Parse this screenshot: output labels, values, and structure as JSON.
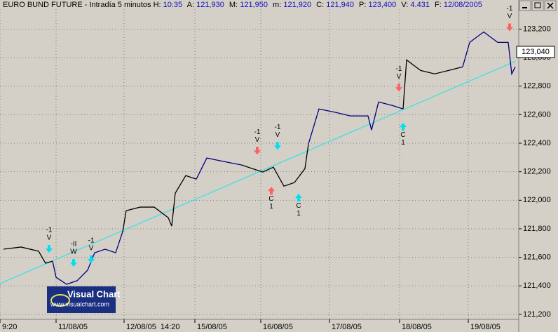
{
  "chart_data": {
    "type": "line",
    "title": "EURO BUND FUTURE - Intradía 5 minutos",
    "header_fields": [
      {
        "key": "H:",
        "value": "10:35"
      },
      {
        "key": "A:",
        "value": "121,930"
      },
      {
        "key": "M:",
        "value": "121,950"
      },
      {
        "key": "m:",
        "value": "121,920"
      },
      {
        "key": "C:",
        "value": "121,940"
      },
      {
        "key": "P:",
        "value": "123,400"
      },
      {
        "key": "V:",
        "value": "4.431"
      },
      {
        "key": "F:",
        "value": "12/08/2005"
      }
    ],
    "x": [
      5,
      30,
      55,
      65,
      75,
      80,
      95,
      110,
      125,
      135,
      150,
      165,
      175,
      180,
      200,
      220,
      240,
      245,
      250,
      265,
      280,
      295,
      320,
      345,
      360,
      375,
      390,
      405,
      420,
      435,
      440,
      455,
      480,
      500,
      525,
      530,
      540,
      560,
      575,
      580,
      600,
      620,
      640,
      660,
      670,
      690,
      710,
      725,
      730,
      735
    ],
    "series": [
      {
        "color": "#000000",
        "values": [
          121657,
          121672,
          121643,
          121559,
          121573,
          null,
          null,
          null,
          null,
          null,
          null,
          null,
          121780,
          121927,
          121952,
          121952,
          121878,
          121819,
          122050,
          122173,
          122148,
          null,
          null,
          122247,
          122222,
          122198,
          122232,
          122099,
          122124,
          122222,
          122394,
          null,
          null,
          null,
          null,
          null,
          null,
          null,
          122640,
          122984,
          122910,
          122886,
          122910,
          122935,
          null,
          null,
          null,
          null,
          null,
          null
        ]
      },
      {
        "color": "#000080",
        "values": [
          null,
          null,
          null,
          null,
          121573,
          121460,
          121411,
          121436,
          121510,
          121632,
          121657,
          121632,
          121780,
          null,
          null,
          null,
          null,
          null,
          null,
          null,
          122148,
          122296,
          122271,
          122247,
          null,
          null,
          null,
          null,
          null,
          null,
          122394,
          122640,
          122615,
          122591,
          122591,
          122492,
          122689,
          122664,
          122640,
          null,
          null,
          null,
          null,
          122935,
          123107,
          123180,
          123107,
          123107,
          122886,
          122935
        ]
      }
    ],
    "trendline": {
      "color": "#40e0e0",
      "x": [
        0,
        735
      ],
      "values": [
        121416,
        122974
      ]
    },
    "signals": [
      {
        "x": 70,
        "price": 121632,
        "direction": "down",
        "color": "#00e0f0",
        "texts": [
          "-1",
          "V"
        ]
      },
      {
        "x": 105,
        "price": 121534,
        "direction": "down",
        "color": "#00e0f0",
        "texts": [
          "-II",
          "W"
        ]
      },
      {
        "x": 130,
        "price": 121559,
        "direction": "down",
        "color": "#00e0f0",
        "texts": [
          "-1",
          "V"
        ]
      },
      {
        "x": 367,
        "price": 122320,
        "direction": "down",
        "color": "#ff6060",
        "texts": [
          "-1",
          "V"
        ]
      },
      {
        "x": 396,
        "price": 122354,
        "direction": "down",
        "color": "#00e0f0",
        "texts": [
          "-1",
          "V"
        ]
      },
      {
        "x": 387,
        "price": 122094,
        "direction": "up",
        "color": "#ff6060",
        "texts": [
          "C",
          "1"
        ]
      },
      {
        "x": 426,
        "price": 122045,
        "direction": "up",
        "color": "#00e0f0",
        "texts": [
          "C",
          "1"
        ]
      },
      {
        "x": 569,
        "price": 122763,
        "direction": "down",
        "color": "#ff6060",
        "texts": [
          "-1",
          "V"
        ]
      },
      {
        "x": 575,
        "price": 122542,
        "direction": "up",
        "color": "#00e0f0",
        "texts": [
          "C",
          "1"
        ]
      },
      {
        "x": 727,
        "price": 123185,
        "direction": "down",
        "color": "#ff6060",
        "texts": [
          "-1",
          "V"
        ]
      }
    ],
    "last_price": {
      "value": 123040,
      "label": "123,040"
    },
    "xlim": [
      0,
      740
    ],
    "xticks": [
      {
        "value": 0,
        "label": "9:20"
      },
      {
        "value": 80,
        "label": "11/08/05"
      },
      {
        "value": 177,
        "label": "12/08/05  14:20"
      },
      {
        "value": 278,
        "label": "15/08/05"
      },
      {
        "value": 372,
        "label": "16/08/05"
      },
      {
        "value": 470,
        "label": "17/08/05"
      },
      {
        "value": 570,
        "label": "18/08/05"
      },
      {
        "value": 668,
        "label": "19/08/05"
      }
    ],
    "ylim": [
      121165,
      123340
    ],
    "yticks": [
      {
        "value": 121200,
        "label": "121,200"
      },
      {
        "value": 121400,
        "label": "121,400"
      },
      {
        "value": 121600,
        "label": "121,600"
      },
      {
        "value": 121800,
        "label": "121,800"
      },
      {
        "value": 122000,
        "label": "122,000"
      },
      {
        "value": 122200,
        "label": "122,200"
      },
      {
        "value": 122400,
        "label": "122,400"
      },
      {
        "value": 122600,
        "label": "122,600"
      },
      {
        "value": 122800,
        "label": "122,800"
      },
      {
        "value": 123000,
        "label": "123,000"
      },
      {
        "value": 123200,
        "label": "123,200"
      }
    ],
    "grid": true,
    "logo": {
      "title": "Visual Chart",
      "url": "www.visualchart.com"
    }
  }
}
